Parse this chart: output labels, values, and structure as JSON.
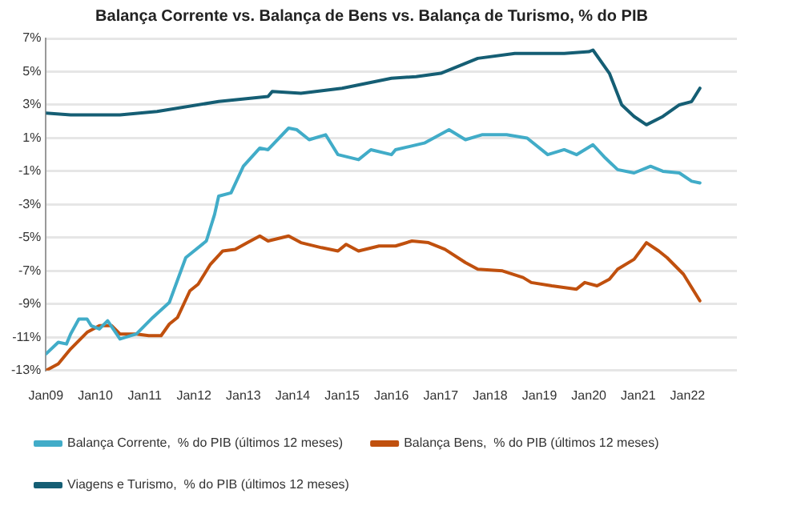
{
  "chart_data": {
    "type": "line",
    "title": "Balança Corrente vs. Balança de Bens vs. Balança de Turismo, % do PIB",
    "xlim": [
      "2009-01",
      "2023-01"
    ],
    "xticks": [
      {
        "value": "2009-01",
        "label": "Jan09"
      },
      {
        "value": "2010-01",
        "label": "Jan10"
      },
      {
        "value": "2011-01",
        "label": "Jan11"
      },
      {
        "value": "2012-01",
        "label": "Jan12"
      },
      {
        "value": "2013-01",
        "label": "Jan13"
      },
      {
        "value": "2014-01",
        "label": "Jan14"
      },
      {
        "value": "2015-01",
        "label": "Jan15"
      },
      {
        "value": "2016-01",
        "label": "Jan16"
      },
      {
        "value": "2017-01",
        "label": "Jan17"
      },
      {
        "value": "2018-01",
        "label": "Jan18"
      },
      {
        "value": "2019-01",
        "label": "Jan19"
      },
      {
        "value": "2020-01",
        "label": "Jan20"
      },
      {
        "value": "2021-01",
        "label": "Jan21"
      },
      {
        "value": "2022-01",
        "label": "Jan22"
      }
    ],
    "ylim": [
      -13,
      7
    ],
    "yticks": [
      {
        "value": -13,
        "label": "-13%"
      },
      {
        "value": -11,
        "label": "-11%"
      },
      {
        "value": -9,
        "label": "-9%"
      },
      {
        "value": -7,
        "label": "-7%"
      },
      {
        "value": -5,
        "label": "-5%"
      },
      {
        "value": -3,
        "label": "-3%"
      },
      {
        "value": -1,
        "label": "-1%"
      },
      {
        "value": 1,
        "label": "1%"
      },
      {
        "value": 3,
        "label": "3%"
      },
      {
        "value": 5,
        "label": "5%"
      },
      {
        "value": 7,
        "label": "7%"
      }
    ],
    "grid": "y",
    "legend": "bottom",
    "marker": "none",
    "line_style": "solid",
    "series": [
      {
        "name": "Balança Corrente,  % do PIB (últimos 12 meses)",
        "color": "#41acc8",
        "x": [
          "2009-01",
          "2009-04",
          "2009-06",
          "2009-07",
          "2009-09",
          "2009-11",
          "2009-12",
          "2010-02",
          "2010-04",
          "2010-07",
          "2010-11",
          "2011-03",
          "2011-07",
          "2011-11",
          "2012-04",
          "2012-06",
          "2012-07",
          "2012-10",
          "2013-01",
          "2013-05",
          "2013-07",
          "2013-12",
          "2014-02",
          "2014-05",
          "2014-09",
          "2014-12",
          "2015-05",
          "2015-08",
          "2016-01",
          "2016-02",
          "2016-09",
          "2017-03",
          "2017-07",
          "2017-11",
          "2018-05",
          "2018-10",
          "2019-03",
          "2019-07",
          "2019-10",
          "2020-02",
          "2020-05",
          "2020-08",
          "2020-12",
          "2021-04",
          "2021-07",
          "2021-11",
          "2022-02",
          "2022-04"
        ],
        "values": [
          -12.0,
          -11.3,
          -11.4,
          -10.8,
          -9.9,
          -9.9,
          -10.3,
          -10.5,
          -10.0,
          -11.1,
          -10.8,
          -9.8,
          -8.9,
          -6.2,
          -5.2,
          -3.6,
          -2.5,
          -2.3,
          -0.7,
          0.4,
          0.3,
          1.6,
          1.5,
          0.9,
          1.2,
          0.0,
          -0.3,
          0.3,
          0.0,
          0.3,
          0.7,
          1.5,
          0.9,
          1.2,
          1.2,
          1.0,
          0.0,
          0.3,
          0.0,
          0.6,
          -0.2,
          -0.9,
          -1.1,
          -0.7,
          -1.0,
          -1.1,
          -1.6,
          -1.7
        ]
      },
      {
        "name": "Balança Bens,  % do PIB (últimos 12 meses)",
        "color": "#c0500e",
        "x": [
          "2009-01",
          "2009-04",
          "2009-07",
          "2009-11",
          "2010-02",
          "2010-05",
          "2010-07",
          "2010-11",
          "2011-02",
          "2011-05",
          "2011-07",
          "2011-09",
          "2011-12",
          "2012-02",
          "2012-05",
          "2012-08",
          "2012-11",
          "2013-02",
          "2013-05",
          "2013-07",
          "2013-12",
          "2014-03",
          "2014-08",
          "2014-12",
          "2015-02",
          "2015-05",
          "2015-10",
          "2016-02",
          "2016-06",
          "2016-10",
          "2017-02",
          "2017-07",
          "2017-10",
          "2018-04",
          "2018-09",
          "2018-11",
          "2019-04",
          "2019-10",
          "2019-12",
          "2020-03",
          "2020-06",
          "2020-08",
          "2020-12",
          "2021-03",
          "2021-06",
          "2021-08",
          "2021-12",
          "2022-04"
        ],
        "values": [
          -13.0,
          -12.6,
          -11.7,
          -10.7,
          -10.3,
          -10.3,
          -10.8,
          -10.8,
          -10.9,
          -10.9,
          -10.2,
          -9.8,
          -8.2,
          -7.8,
          -6.6,
          -5.8,
          -5.7,
          -5.3,
          -4.9,
          -5.2,
          -4.9,
          -5.3,
          -5.6,
          -5.8,
          -5.4,
          -5.8,
          -5.5,
          -5.5,
          -5.2,
          -5.3,
          -5.7,
          -6.5,
          -6.9,
          -7.0,
          -7.4,
          -7.7,
          -7.9,
          -8.1,
          -7.7,
          -7.9,
          -7.5,
          -6.9,
          -6.3,
          -5.3,
          -5.8,
          -6.2,
          -7.2,
          -8.8
        ]
      },
      {
        "name": "Viagens e Turismo,  % do PIB (últimos 12 meses)",
        "color": "#155e74",
        "x": [
          "2009-01",
          "2009-07",
          "2010-07",
          "2011-04",
          "2012-07",
          "2013-07",
          "2013-08",
          "2014-03",
          "2015-01",
          "2015-07",
          "2016-01",
          "2016-07",
          "2017-01",
          "2017-07",
          "2017-10",
          "2018-07",
          "2019-07",
          "2020-01",
          "2020-02",
          "2020-06",
          "2020-09",
          "2020-12",
          "2021-03",
          "2021-07",
          "2021-11",
          "2022-02",
          "2022-04"
        ],
        "values": [
          2.5,
          2.4,
          2.4,
          2.6,
          3.2,
          3.5,
          3.8,
          3.7,
          4.0,
          4.3,
          4.6,
          4.7,
          4.9,
          5.5,
          5.8,
          6.1,
          6.1,
          6.2,
          6.3,
          4.9,
          3.0,
          2.3,
          1.8,
          2.3,
          3.0,
          3.2,
          4.0
        ]
      }
    ]
  }
}
